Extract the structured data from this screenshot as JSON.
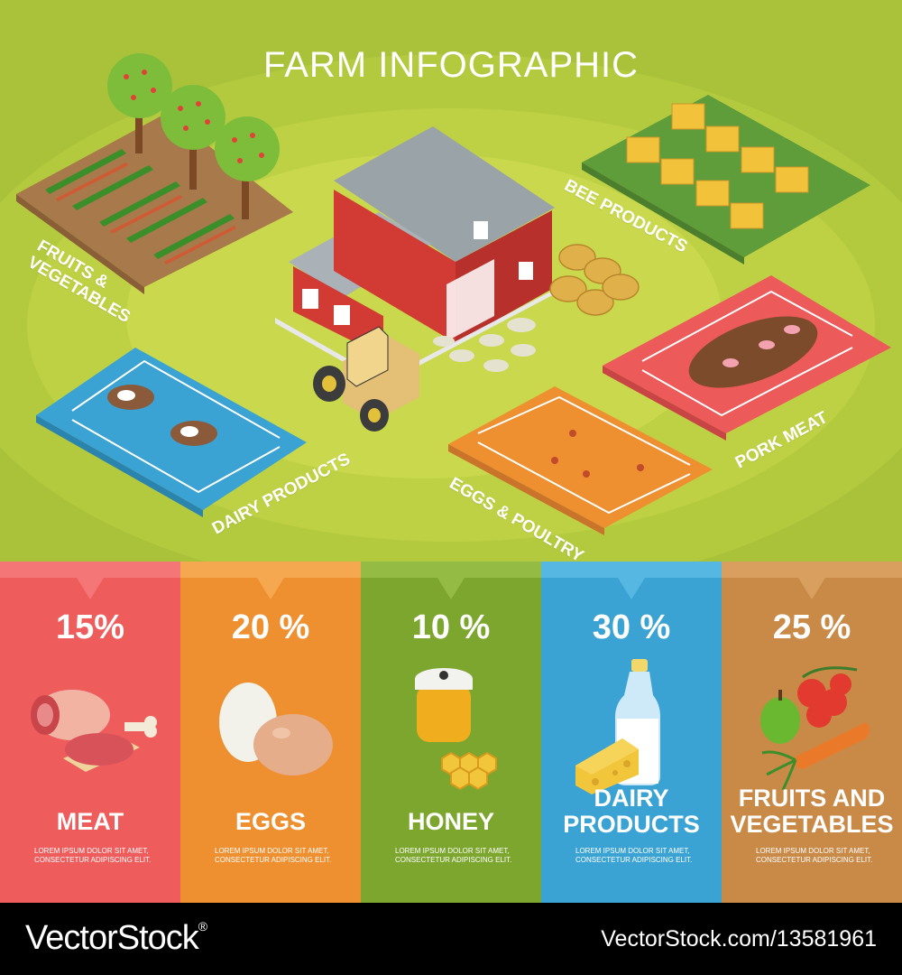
{
  "title": "FARM INFOGRAPHIC",
  "zones": {
    "fruits": "FRUITS &\nVEGETABLES",
    "bee": "BEE PRODUCTS",
    "pork": "PORK MEAT",
    "dairy": "DAIRY PRODUCTS",
    "eggs": "EGGS & POULTRY"
  },
  "colors": {
    "scene_bg": "#a9c23a",
    "meat": "#ee5c5c",
    "eggs": "#ee9030",
    "honey": "#7da62f",
    "dairy": "#3aa3d3",
    "fruits": "#c98a48"
  },
  "panels": [
    {
      "pct": "15%",
      "name_line1": "MEAT",
      "name_line2": "",
      "lorem1": "LOREM IPSUM DOLOR SIT AMET,",
      "lorem2": "CONSECTETUR ADIPISCING ELIT.",
      "icon": "meat-icon",
      "share": 15
    },
    {
      "pct": "20 %",
      "name_line1": "EGGS",
      "name_line2": "",
      "lorem1": "LOREM IPSUM DOLOR SIT AMET,",
      "lorem2": "CONSECTETUR ADIPISCING ELIT.",
      "icon": "eggs-icon",
      "share": 20
    },
    {
      "pct": "10 %",
      "name_line1": "HONEY",
      "name_line2": "",
      "lorem1": "LOREM IPSUM DOLOR SIT AMET,",
      "lorem2": "CONSECTETUR ADIPISCING ELIT.",
      "icon": "honey-jar-icon",
      "share": 10
    },
    {
      "pct": "30 %",
      "name_line1": "DAIRY",
      "name_line2": "PRODUCTS",
      "lorem1": "LOREM IPSUM DOLOR SIT AMET,",
      "lorem2": "CONSECTETUR ADIPISCING ELIT.",
      "icon": "milk-cheese-icon",
      "share": 30
    },
    {
      "pct": "25 %",
      "name_line1": "FRUITS AND",
      "name_line2": "VEGETABLES",
      "lorem1": "LOREM IPSUM DOLOR SIT AMET,",
      "lorem2": "CONSECTETUR ADIPISCING ELIT.",
      "icon": "vegetables-icon",
      "share": 25
    }
  ],
  "footer": {
    "logo": "VectorStock",
    "logo_mark": "®",
    "url": "VectorStock.com/13581961"
  }
}
